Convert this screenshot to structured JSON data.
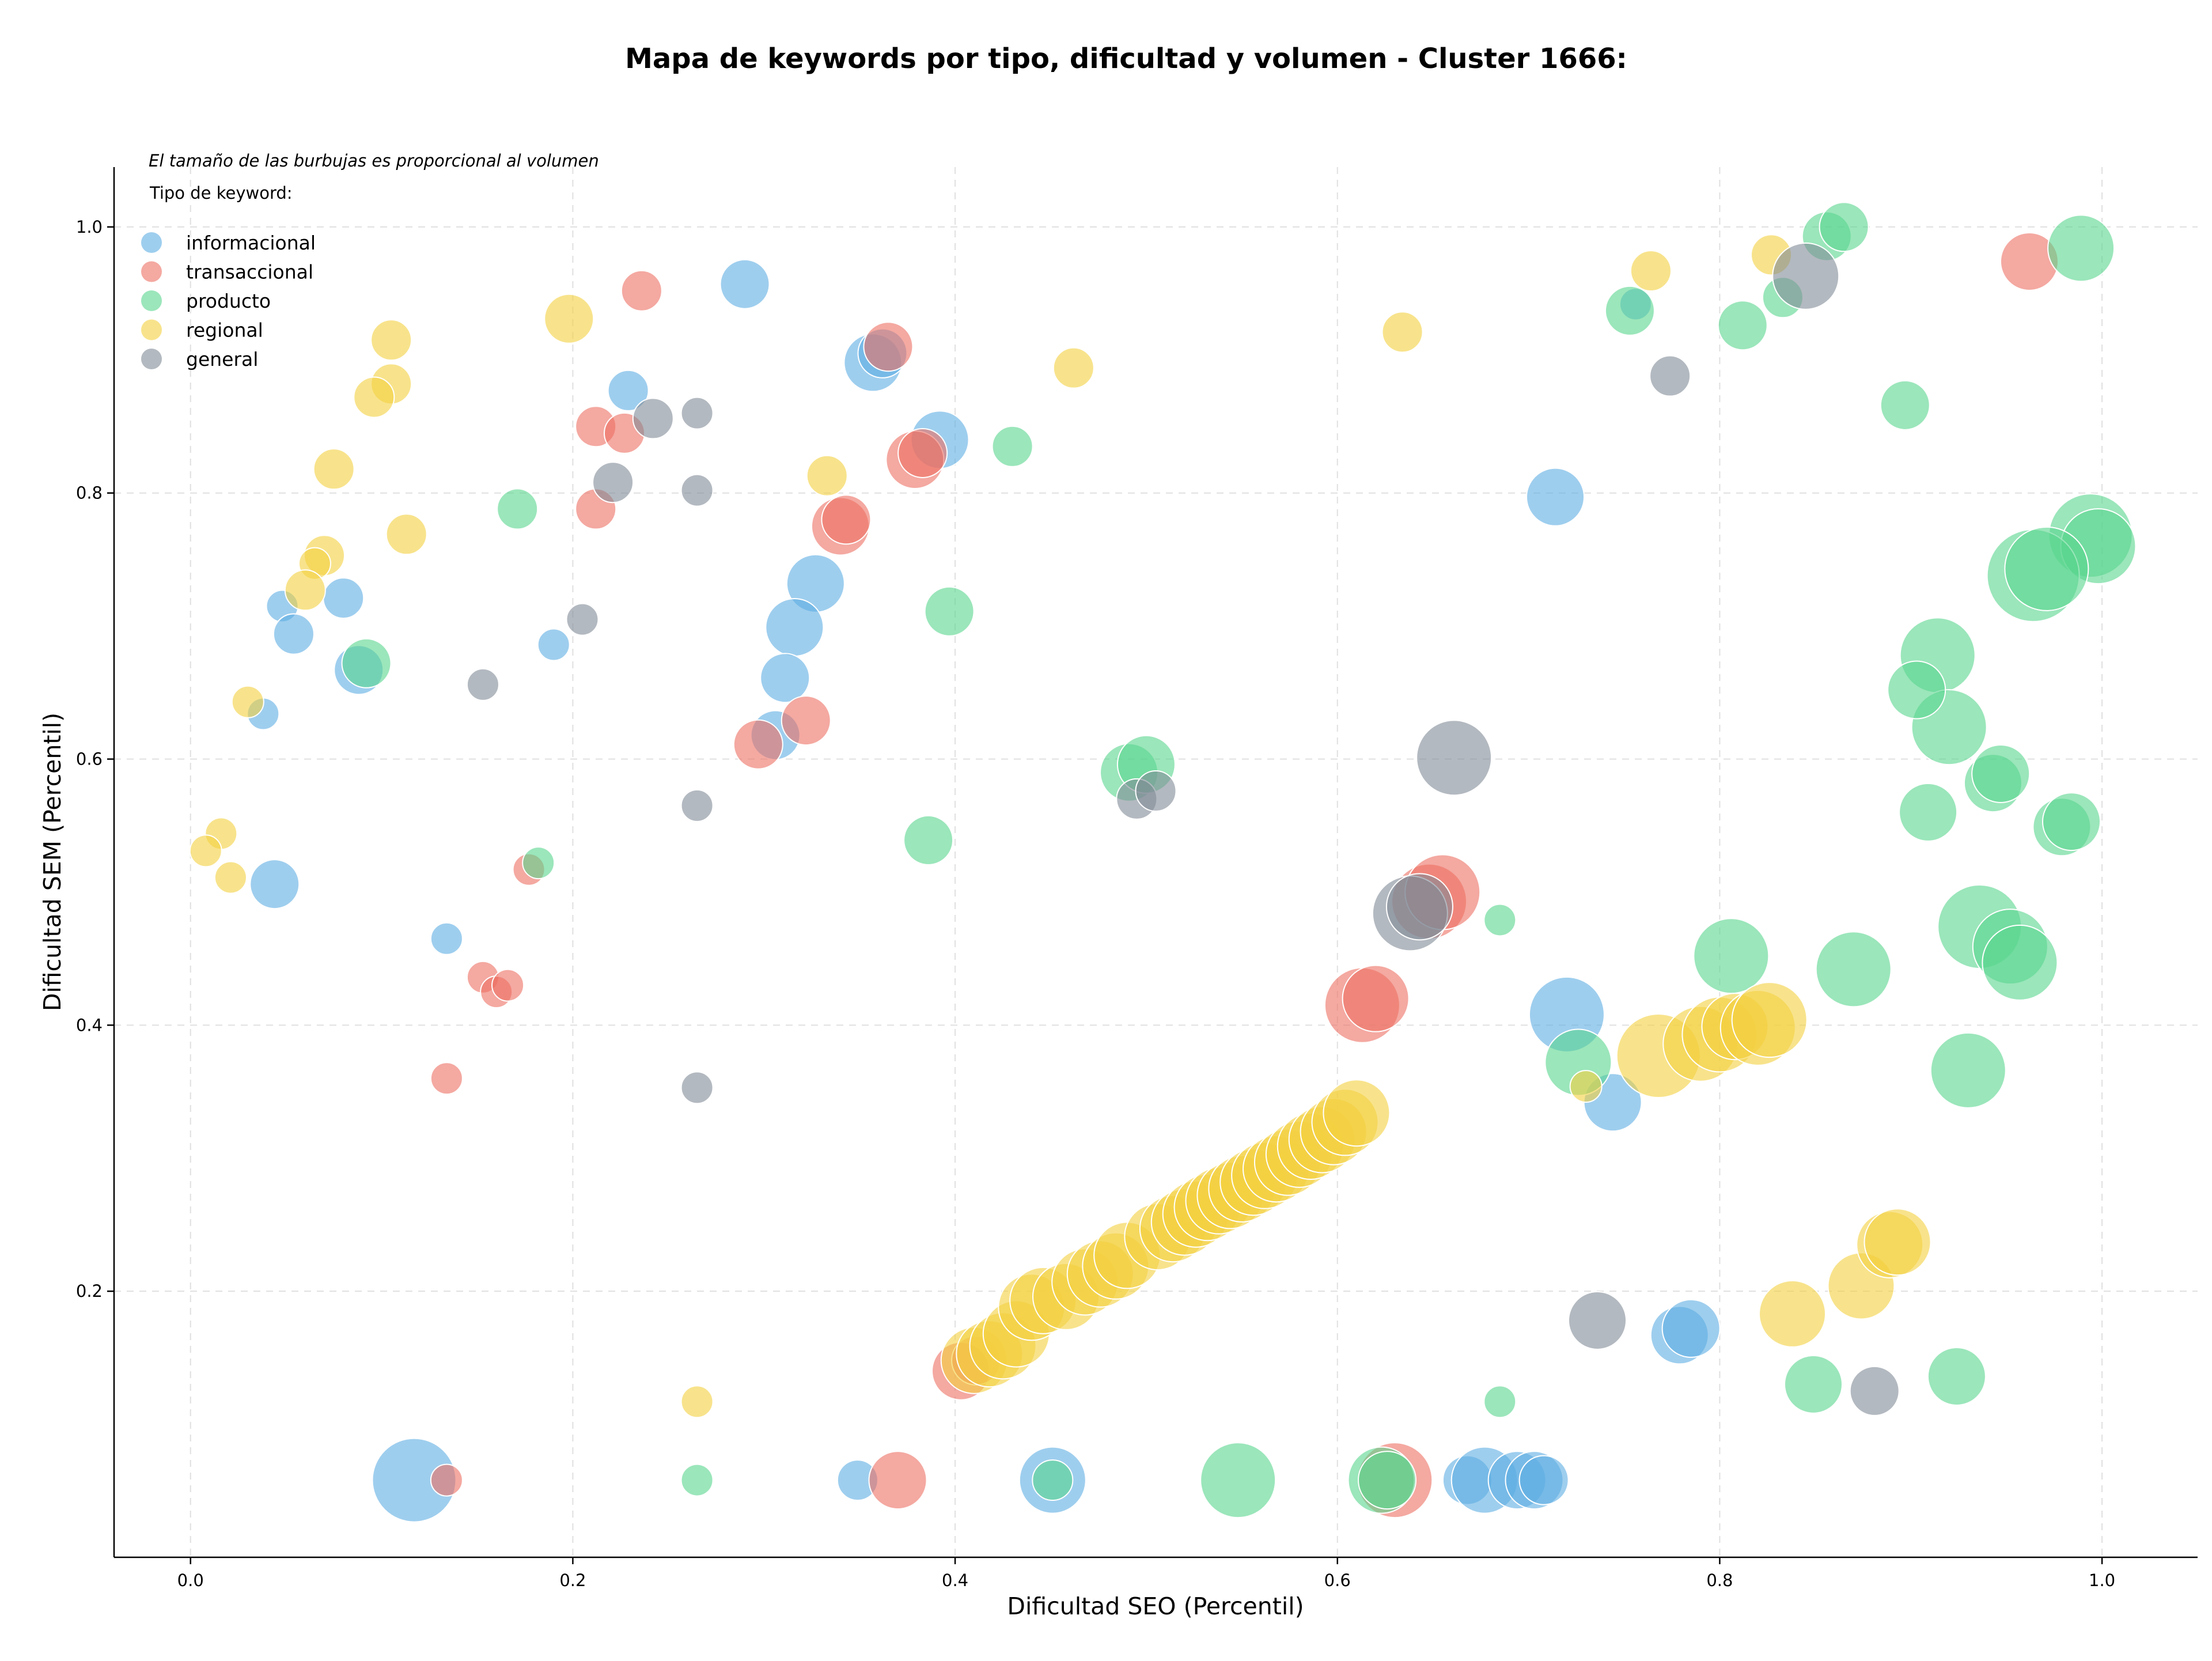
{
  "chart_data": {
    "type": "scatter",
    "title": "Mapa de keywords por tipo, dificultad y volumen - Cluster 1666:",
    "xlabel": "Dificultad SEO (Percentil)",
    "ylabel": "Dificultad SEM (Percentil)",
    "xlim": [
      -0.04,
      1.05
    ],
    "ylim": [
      0.0,
      1.045
    ],
    "xticks": [
      0.0,
      0.2,
      0.4,
      0.6,
      0.8,
      1.0
    ],
    "xtick_labels": [
      "0.0",
      "0.2",
      "0.4",
      "0.6",
      "0.8",
      "1.0"
    ],
    "yticks": [
      0.2,
      0.4,
      0.6,
      0.8,
      1.0
    ],
    "ytick_labels": [
      "0.2",
      "0.4",
      "0.6",
      "0.8",
      "1.0"
    ],
    "grid": true,
    "legend_position": "top-left",
    "note": "El tamaño de las burbujas es proporcional al volumen",
    "legend_title": "Tipo de keyword:",
    "series": [
      {
        "name": "informacional",
        "color": "#5DADE2",
        "points": [
          [
            0.048,
            0.715,
            1
          ],
          [
            0.054,
            0.694,
            2
          ],
          [
            0.08,
            0.721,
            2
          ],
          [
            0.038,
            0.634,
            1
          ],
          [
            0.088,
            0.667,
            3
          ],
          [
            0.044,
            0.506,
            3
          ],
          [
            0.134,
            0.465,
            1
          ],
          [
            0.19,
            0.686,
            1
          ],
          [
            0.229,
            0.877,
            2
          ],
          [
            0.29,
            0.957,
            3
          ],
          [
            0.357,
            0.898,
            4
          ],
          [
            0.362,
            0.905,
            3
          ],
          [
            0.392,
            0.84,
            4
          ],
          [
            0.327,
            0.732,
            4
          ],
          [
            0.316,
            0.699,
            4
          ],
          [
            0.311,
            0.661,
            3
          ],
          [
            0.306,
            0.618,
            3
          ],
          [
            0.117,
            0.058,
            7
          ],
          [
            0.349,
            0.058,
            2
          ],
          [
            0.451,
            0.058,
            5
          ],
          [
            0.668,
            0.058,
            3
          ],
          [
            0.677,
            0.058,
            5
          ],
          [
            0.694,
            0.058,
            4
          ],
          [
            0.703,
            0.058,
            4
          ],
          [
            0.708,
            0.058,
            3
          ],
          [
            0.714,
            0.797,
            4
          ],
          [
            0.72,
            0.408,
            6
          ],
          [
            0.744,
            0.342,
            4
          ],
          [
            0.779,
            0.167,
            4
          ],
          [
            0.785,
            0.172,
            4
          ],
          [
            0.756,
            0.942,
            1
          ]
        ]
      },
      {
        "name": "transaccional",
        "color": "#EC7063",
        "points": [
          [
            0.236,
            0.952,
            2
          ],
          [
            0.212,
            0.85,
            2
          ],
          [
            0.227,
            0.845,
            2
          ],
          [
            0.212,
            0.788,
            2
          ],
          [
            0.365,
            0.91,
            3
          ],
          [
            0.379,
            0.825,
            4
          ],
          [
            0.383,
            0.83,
            3
          ],
          [
            0.34,
            0.775,
            4
          ],
          [
            0.343,
            0.78,
            3
          ],
          [
            0.297,
            0.611,
            3
          ],
          [
            0.322,
            0.629,
            3
          ],
          [
            0.177,
            0.517,
            1
          ],
          [
            0.153,
            0.436,
            1
          ],
          [
            0.16,
            0.425,
            1
          ],
          [
            0.166,
            0.43,
            1
          ],
          [
            0.134,
            0.36,
            1
          ],
          [
            0.134,
            0.058,
            1
          ],
          [
            0.37,
            0.058,
            4
          ],
          [
            0.403,
            0.14,
            4
          ],
          [
            0.411,
            0.148,
            3
          ],
          [
            0.613,
            0.415,
            6
          ],
          [
            0.62,
            0.42,
            5
          ],
          [
            0.648,
            0.493,
            6
          ],
          [
            0.655,
            0.5,
            6
          ],
          [
            0.63,
            0.058,
            6
          ],
          [
            0.962,
            0.974,
            4
          ]
        ]
      },
      {
        "name": "producto",
        "color": "#58D68D",
        "points": [
          [
            0.171,
            0.788,
            2
          ],
          [
            0.092,
            0.672,
            3
          ],
          [
            0.182,
            0.522,
            1
          ],
          [
            0.265,
            0.058,
            1
          ],
          [
            0.397,
            0.711,
            3
          ],
          [
            0.386,
            0.539,
            3
          ],
          [
            0.43,
            0.835,
            2
          ],
          [
            0.491,
            0.59,
            4
          ],
          [
            0.5,
            0.596,
            4
          ],
          [
            0.451,
            0.058,
            2
          ],
          [
            0.548,
            0.058,
            6
          ],
          [
            0.623,
            0.058,
            5
          ],
          [
            0.626,
            0.058,
            4
          ],
          [
            0.685,
            0.479,
            1
          ],
          [
            0.685,
            0.117,
            1
          ],
          [
            0.726,
            0.372,
            5
          ],
          [
            0.753,
            0.937,
            3
          ],
          [
            0.812,
            0.926,
            3
          ],
          [
            0.833,
            0.947,
            2
          ],
          [
            0.856,
            0.993,
            3
          ],
          [
            0.865,
            1.0,
            3
          ],
          [
            0.897,
            0.866,
            3
          ],
          [
            0.989,
            0.984,
            5
          ],
          [
            0.994,
            0.768,
            7
          ],
          [
            0.998,
            0.76,
            6
          ],
          [
            0.964,
            0.738,
            8
          ],
          [
            0.971,
            0.743,
            7
          ],
          [
            0.914,
            0.678,
            6
          ],
          [
            0.92,
            0.624,
            6
          ],
          [
            0.903,
            0.652,
            4
          ],
          [
            0.943,
            0.582,
            4
          ],
          [
            0.947,
            0.589,
            4
          ],
          [
            0.909,
            0.56,
            4
          ],
          [
            0.979,
            0.549,
            4
          ],
          [
            0.984,
            0.553,
            4
          ],
          [
            0.936,
            0.474,
            7
          ],
          [
            0.952,
            0.459,
            6
          ],
          [
            0.957,
            0.447,
            6
          ],
          [
            0.806,
            0.452,
            6
          ],
          [
            0.87,
            0.442,
            6
          ],
          [
            0.93,
            0.366,
            6
          ],
          [
            0.849,
            0.13,
            4
          ],
          [
            0.924,
            0.136,
            4
          ]
        ]
      },
      {
        "name": "regional",
        "color": "#F4D03F",
        "points": [
          [
            0.105,
            0.915,
            2
          ],
          [
            0.105,
            0.882,
            2
          ],
          [
            0.096,
            0.872,
            2
          ],
          [
            0.198,
            0.931,
            3
          ],
          [
            0.075,
            0.818,
            2
          ],
          [
            0.113,
            0.769,
            2
          ],
          [
            0.07,
            0.753,
            2
          ],
          [
            0.065,
            0.747,
            1
          ],
          [
            0.06,
            0.727,
            2
          ],
          [
            0.03,
            0.643,
            1
          ],
          [
            0.016,
            0.544,
            1
          ],
          [
            0.008,
            0.531,
            1
          ],
          [
            0.021,
            0.511,
            1
          ],
          [
            0.265,
            0.117,
            1
          ],
          [
            0.333,
            0.813,
            2
          ],
          [
            0.462,
            0.894,
            2
          ],
          [
            0.634,
            0.921,
            2
          ],
          [
            0.764,
            0.967,
            2
          ],
          [
            0.827,
            0.979,
            2
          ],
          [
            0.73,
            0.354,
            1
          ],
          [
            0.768,
            0.377,
            7
          ],
          [
            0.79,
            0.386,
            6
          ],
          [
            0.8,
            0.393,
            6
          ],
          [
            0.808,
            0.399,
            5
          ],
          [
            0.82,
            0.398,
            6
          ],
          [
            0.826,
            0.404,
            6
          ],
          [
            0.838,
            0.183,
            5
          ],
          [
            0.874,
            0.204,
            5
          ],
          [
            0.889,
            0.235,
            5
          ],
          [
            0.893,
            0.237,
            5
          ],
          [
            0.41,
            0.148,
            5
          ],
          [
            0.418,
            0.153,
            5
          ],
          [
            0.425,
            0.159,
            5
          ],
          [
            0.432,
            0.168,
            5
          ],
          [
            0.44,
            0.188,
            5
          ],
          [
            0.446,
            0.193,
            5
          ],
          [
            0.458,
            0.196,
            5
          ],
          [
            0.468,
            0.207,
            5
          ],
          [
            0.476,
            0.213,
            5
          ],
          [
            0.484,
            0.219,
            5
          ],
          [
            0.49,
            0.227,
            5
          ],
          [
            0.506,
            0.241,
            5
          ],
          [
            0.514,
            0.247,
            5
          ],
          [
            0.52,
            0.252,
            5
          ],
          [
            0.526,
            0.258,
            5
          ],
          [
            0.532,
            0.263,
            5
          ],
          [
            0.538,
            0.268,
            5
          ],
          [
            0.544,
            0.272,
            5
          ],
          [
            0.55,
            0.277,
            5
          ],
          [
            0.556,
            0.282,
            5
          ],
          [
            0.562,
            0.287,
            5
          ],
          [
            0.568,
            0.292,
            5
          ],
          [
            0.574,
            0.297,
            5
          ],
          [
            0.58,
            0.303,
            5
          ],
          [
            0.586,
            0.309,
            5
          ],
          [
            0.592,
            0.314,
            5
          ],
          [
            0.598,
            0.32,
            5
          ],
          [
            0.604,
            0.327,
            5
          ],
          [
            0.61,
            0.334,
            5
          ]
        ]
      },
      {
        "name": "general",
        "color": "#808B96",
        "points": [
          [
            0.221,
            0.808,
            2
          ],
          [
            0.242,
            0.856,
            2
          ],
          [
            0.265,
            0.86,
            1
          ],
          [
            0.265,
            0.802,
            1
          ],
          [
            0.205,
            0.705,
            1
          ],
          [
            0.153,
            0.656,
            1
          ],
          [
            0.265,
            0.565,
            1
          ],
          [
            0.265,
            0.353,
            1
          ],
          [
            0.495,
            0.57,
            2
          ],
          [
            0.505,
            0.576,
            2
          ],
          [
            0.661,
            0.601,
            6
          ],
          [
            0.638,
            0.484,
            6
          ],
          [
            0.643,
            0.489,
            5
          ],
          [
            0.736,
            0.178,
            4
          ],
          [
            0.881,
            0.125,
            3
          ],
          [
            0.774,
            0.888,
            2
          ],
          [
            0.845,
            0.963,
            5
          ]
        ]
      }
    ]
  }
}
